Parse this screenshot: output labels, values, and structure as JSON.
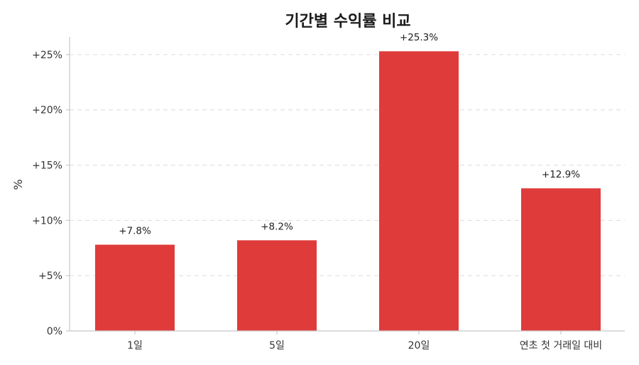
{
  "chart_data": {
    "type": "bar",
    "title": "기간별 수익률 비교",
    "xlabel": "",
    "ylabel": "%",
    "categories": [
      "1일",
      "5일",
      "20일",
      "연초 첫 거래일 대비"
    ],
    "values": [
      7.8,
      8.2,
      25.3,
      12.9
    ],
    "value_labels": [
      "+7.8%",
      "+8.2%",
      "+25.3%",
      "+12.9%"
    ],
    "yticks": [
      0,
      5,
      10,
      15,
      20,
      25
    ],
    "ytick_labels": [
      "0%",
      "+5%",
      "+10%",
      "+15%",
      "+20%",
      "+25%"
    ],
    "ylim": [
      0,
      26.6
    ],
    "grid": true,
    "bar_color": "#e03b3b"
  }
}
